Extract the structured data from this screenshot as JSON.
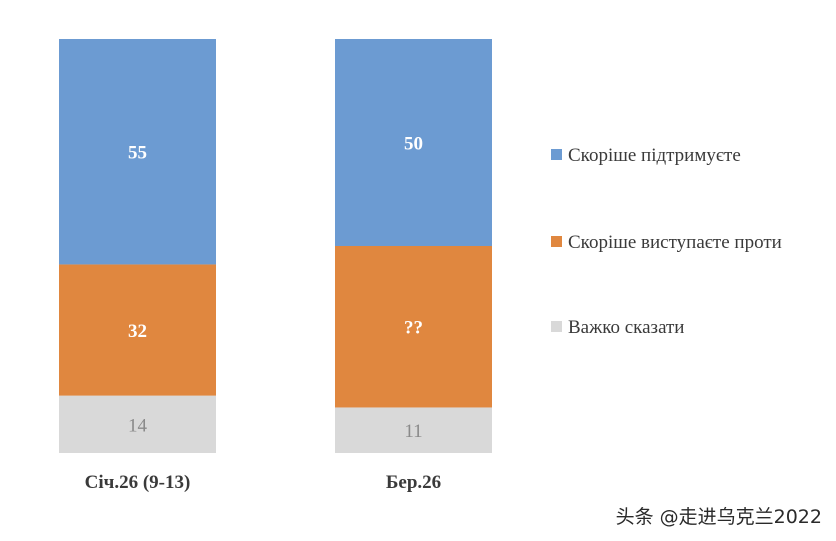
{
  "chart_data": {
    "type": "bar",
    "stacked": true,
    "categories": [
      "Січ.26 (9-13)",
      "Бер.26"
    ],
    "series": [
      {
        "name": "Скоріше підтримуєте",
        "values": [
          55,
          50
        ],
        "color": "#6c9bd2"
      },
      {
        "name": "Скоріше виступаєте проти",
        "values": [
          32,
          39
        ],
        "color": "#e0873f"
      },
      {
        "name": "Важко сказати",
        "values": [
          14,
          11
        ],
        "color": "#d9d9d9"
      }
    ],
    "data_labels": [
      [
        "55",
        "32",
        "14"
      ],
      [
        "50",
        "??",
        "11"
      ]
    ],
    "legend_position": "right",
    "grid": false
  },
  "watermark": "头条 @走进乌克兰2022"
}
